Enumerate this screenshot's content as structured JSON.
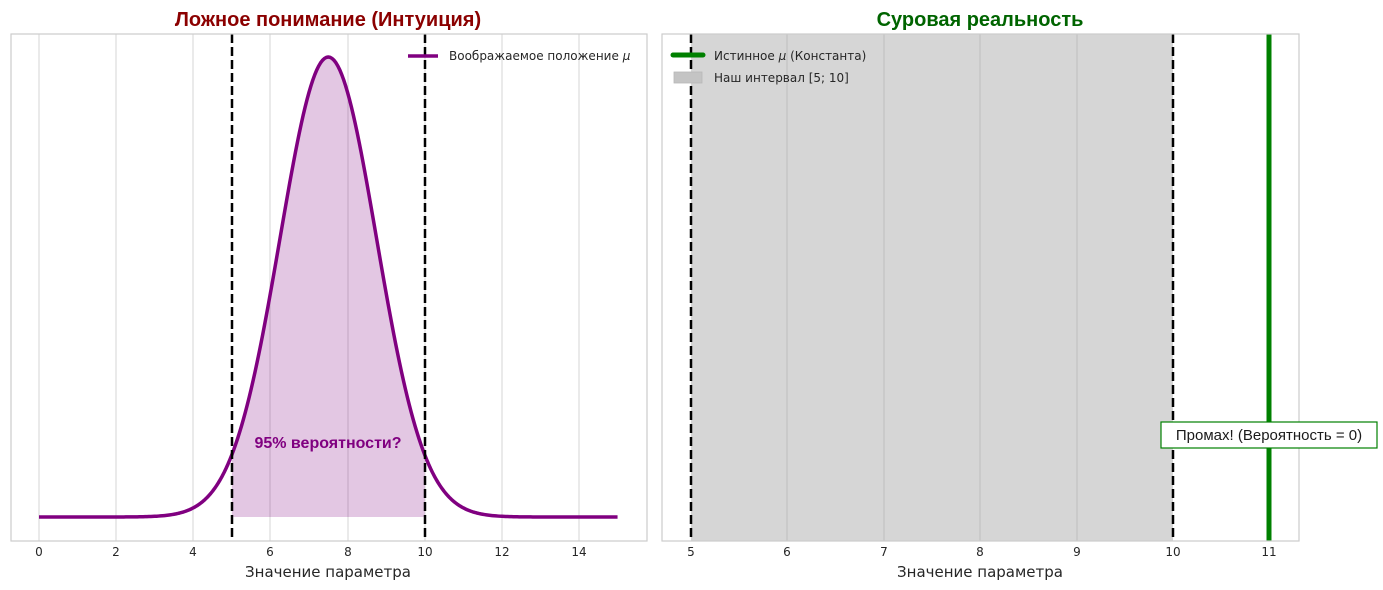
{
  "chart_data": [
    {
      "type": "area",
      "title": "Ложное понимание (Интуиция)",
      "title_color": "#8b0000",
      "xlabel": "Значение параметра",
      "ylabel": "",
      "xlim": [
        -0.75,
        15.75
      ],
      "xticks": [
        0,
        2,
        4,
        6,
        8,
        10,
        12,
        14
      ],
      "grid": "vertical",
      "series": [
        {
          "name": "Воображаемое положение μ",
          "kind": "normal_pdf",
          "mean": 7.5,
          "std": 1.25,
          "x_range": [
            0,
            15
          ],
          "color": "#800080",
          "fill_between": [
            5,
            10
          ],
          "fill_color": "#e3c9e3"
        }
      ],
      "vlines": [
        {
          "x": 5,
          "style": "dashed",
          "color": "#000000"
        },
        {
          "x": 10,
          "style": "dashed",
          "color": "#000000"
        }
      ],
      "annotations": [
        {
          "text": "95% вероятности?",
          "x": 7.5,
          "color": "#800080"
        }
      ],
      "legend": {
        "position": "upper right",
        "entries": [
          "Воображаемое положение μ"
        ]
      }
    },
    {
      "type": "line",
      "title": "Суровая реальность",
      "title_color": "#006400",
      "xlabel": "Значение параметра",
      "ylabel": "",
      "xlim": [
        4.7,
        11.3
      ],
      "xticks": [
        5,
        6,
        7,
        8,
        9,
        10,
        11
      ],
      "grid": "vertical",
      "series": [
        {
          "name": "Истинное μ (Константа)",
          "kind": "vline",
          "x": 11,
          "color": "#008000"
        },
        {
          "name": "Наш интервал [5; 10]",
          "kind": "span",
          "x_range": [
            5,
            10
          ],
          "color": "#d6d6d6"
        }
      ],
      "vlines": [
        {
          "x": 5,
          "style": "dashed",
          "color": "#000000"
        },
        {
          "x": 10,
          "style": "dashed",
          "color": "#000000"
        }
      ],
      "annotations": [
        {
          "text": "Промах! (Вероятность = 0)",
          "x": 11,
          "boxed": true,
          "border_color": "#008000"
        }
      ],
      "legend": {
        "position": "upper left",
        "entries": [
          "Истинное μ (Константа)",
          "Наш интервал [5; 10]"
        ]
      }
    }
  ],
  "left": {
    "title": "Ложное понимание (Интуиция)",
    "xlabel": "Значение параметра",
    "ticks": [
      "0",
      "2",
      "4",
      "6",
      "8",
      "10",
      "12",
      "14"
    ],
    "legend_label": "Воображаемое положение",
    "legend_mu": "μ",
    "annotation": "95% вероятности?"
  },
  "right": {
    "title": "Суровая реальность",
    "xlabel": "Значение параметра",
    "ticks": [
      "5",
      "6",
      "7",
      "8",
      "9",
      "10",
      "11"
    ],
    "legend_true_pre": "Истинное",
    "legend_true_mu": "μ",
    "legend_true_post": "(Константа)",
    "legend_interval": "Наш интервал [5; 10]",
    "annotation": "Промах! (Вероятность = 0)"
  },
  "colors": {
    "purple": "#800080",
    "purple_fill": "#e3c9e3",
    "green": "#008000",
    "span_gray": "#d6d6d6",
    "title_left": "#8b0000",
    "title_right": "#006400"
  }
}
